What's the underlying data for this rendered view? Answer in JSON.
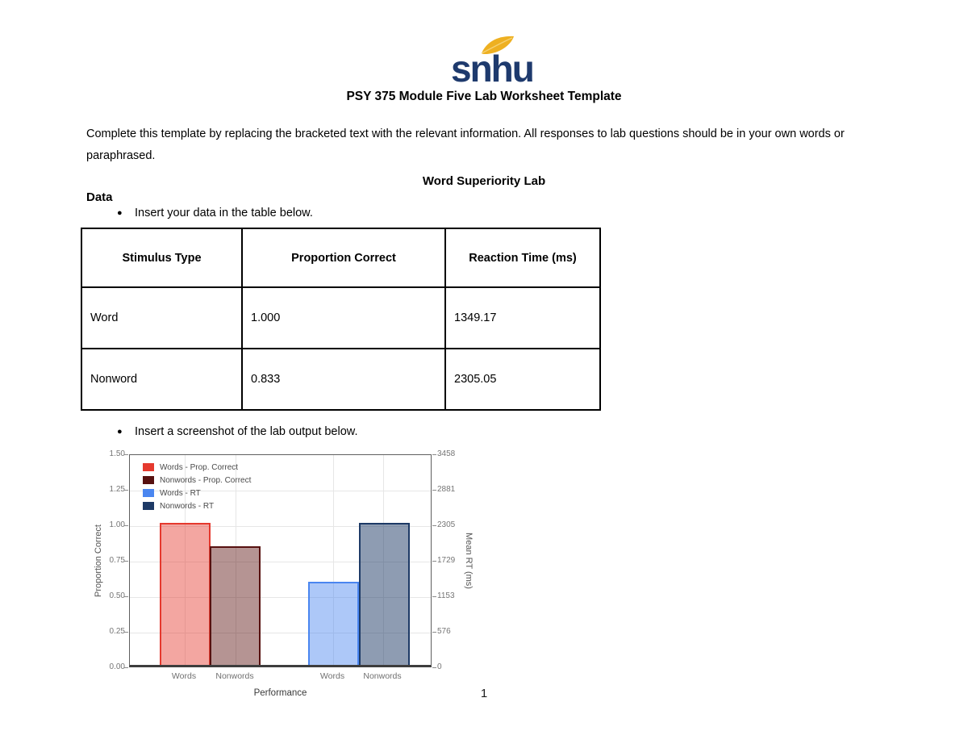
{
  "logo": {
    "text": "snhu",
    "text_color": "#1e3a6d",
    "leaf_color": "#eeb021"
  },
  "header": {
    "title": "PSY 375 Module Five Lab Worksheet Template"
  },
  "intro": {
    "text": "Complete this template by replacing the bracketed text with the relevant information. All responses to lab questions should be in your own words or paraphrased."
  },
  "section": {
    "title": "Word Superiority Lab",
    "data_heading": "Data",
    "bullet_glyph": "●",
    "bullet1": "Insert your data in the table below.",
    "bullet2": "Insert a screenshot of the lab output below."
  },
  "table": {
    "headers": [
      "Stimulus Type",
      "Proportion Correct",
      "Reaction Time (ms)"
    ],
    "rows": [
      [
        "Word",
        "1.000",
        "1349.17"
      ],
      [
        "Nonword",
        "0.833",
        "2305.05"
      ]
    ]
  },
  "chart_data": {
    "type": "bar",
    "title": "",
    "xlabel": "Performance",
    "ylabel_left": "Proportion Correct",
    "ylabel_right": "Mean RT (ms)",
    "categories": [
      "Words",
      "Nonwords",
      "Words",
      "Nonwords"
    ],
    "series": [
      {
        "name": "Words - Prop. Correct",
        "axis": "left",
        "category": "Words",
        "value": 1.0,
        "fill": "rgba(229,57,46,0.45)",
        "border": "#e5392e"
      },
      {
        "name": "Nonwords - Prop. Correct",
        "axis": "left",
        "category": "Nonwords",
        "value": 0.833,
        "fill": "rgba(90,17,16,0.45)",
        "border": "#571110"
      },
      {
        "name": "Words - RT",
        "axis": "right",
        "category": "Words",
        "value": 1349.17,
        "fill": "rgba(74,134,240,0.45)",
        "border": "#4a86f0"
      },
      {
        "name": "Nonwords - RT",
        "axis": "right",
        "category": "Nonwords",
        "value": 2305.05,
        "fill": "rgba(29,58,102,0.5)",
        "border": "#1d3a66"
      }
    ],
    "left_axis": {
      "ticks": [
        "1.50",
        "1.25",
        "1.00",
        "0.75",
        "0.50",
        "0.25",
        "0.00"
      ],
      "min": 0,
      "max": 1.5
    },
    "right_axis": {
      "ticks": [
        "3458",
        "2881",
        "2305",
        "1729",
        "1153",
        "576",
        "0"
      ],
      "min": 0,
      "max": 3457.58
    },
    "legend": [
      "Words - Prop. Correct",
      "Nonwords - Prop. Correct",
      "Words - RT",
      "Nonwords - RT"
    ],
    "legend_position": "top-left",
    "grid": true
  },
  "page": {
    "page_number": "1"
  }
}
